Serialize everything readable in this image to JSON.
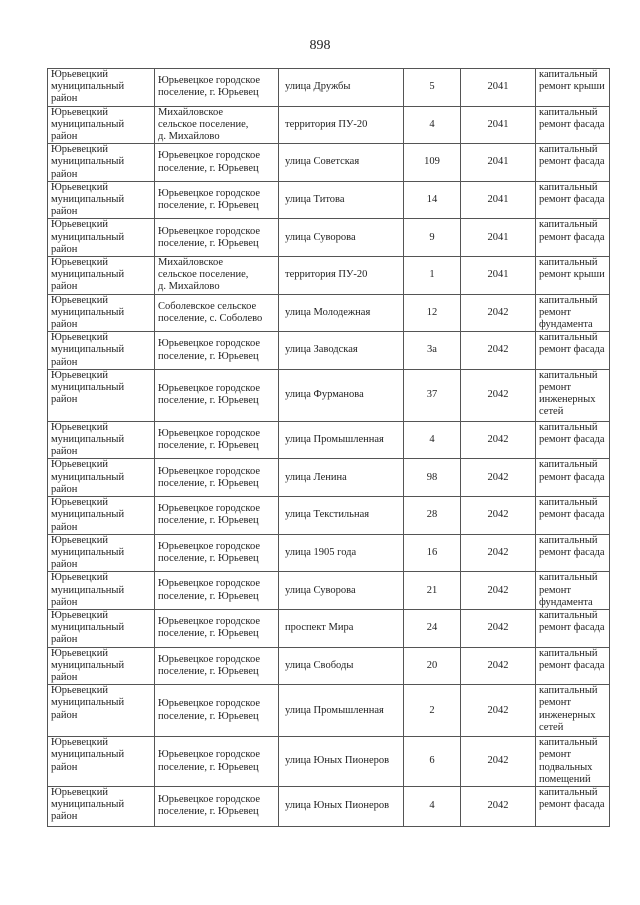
{
  "page_number": "898",
  "rows": [
    {
      "district": "Юрьевецкий\nмуниципальный\nрайон",
      "settlement": "Юрьевецкое городское\nпоселение, г. Юрьевец",
      "street": "улица Дружбы",
      "house": "5",
      "year": "2041",
      "work": "капитальный\nремонт крыши"
    },
    {
      "district": "Юрьевецкий\nмуниципальный\nрайон",
      "settlement": "Михайловское\nсельское поселение,\nд. Михайлово",
      "street": "территория ПУ-20",
      "house": "4",
      "year": "2041",
      "work": "капитальный\nремонт фасада"
    },
    {
      "district": "Юрьевецкий\nмуниципальный\nрайон",
      "settlement": "Юрьевецкое городское\nпоселение, г. Юрьевец",
      "street": "улица Советская",
      "house": "109",
      "year": "2041",
      "work": "капитальный\nремонт фасада"
    },
    {
      "district": "Юрьевецкий\nмуниципальный\nрайон",
      "settlement": "Юрьевецкое городское\nпоселение, г. Юрьевец",
      "street": "улица Титова",
      "house": "14",
      "year": "2041",
      "work": "капитальный\nремонт фасада"
    },
    {
      "district": "Юрьевецкий\nмуниципальный\nрайон",
      "settlement": "Юрьевецкое городское\nпоселение, г. Юрьевец",
      "street": "улица Суворова",
      "house": "9",
      "year": "2041",
      "work": "капитальный\nремонт фасада"
    },
    {
      "district": "Юрьевецкий\nмуниципальный\nрайон",
      "settlement": "Михайловское\nсельское поселение,\nд. Михайлово",
      "street": "территория ПУ-20",
      "house": "1",
      "year": "2041",
      "work": "капитальный\nремонт крыши"
    },
    {
      "district": "Юрьевецкий\nмуниципальный\nрайон",
      "settlement": "Соболевское сельское\nпоселение, с. Соболево",
      "street": "улица Молодежная",
      "house": "12",
      "year": "2042",
      "work": "капитальный\nремонт\nфундамента"
    },
    {
      "district": "Юрьевецкий\nмуниципальный\nрайон",
      "settlement": "Юрьевецкое городское\nпоселение, г. Юрьевец",
      "street": "улица Заводская",
      "house": "3а",
      "year": "2042",
      "work": "капитальный\nремонт фасада"
    },
    {
      "district": "Юрьевецкий\nмуниципальный\nрайон",
      "settlement": "Юрьевецкое городское\nпоселение, г. Юрьевец",
      "street": "улица Фурманова",
      "house": "37",
      "year": "2042",
      "work": "капитальный\nремонт\nинженерных\nсетей"
    },
    {
      "district": "Юрьевецкий\nмуниципальный\nрайон",
      "settlement": "Юрьевецкое городское\nпоселение, г. Юрьевец",
      "street": "улица Промышленная",
      "house": "4",
      "year": "2042",
      "work": "капитальный\nремонт фасада"
    },
    {
      "district": "Юрьевецкий\nмуниципальный\nрайон",
      "settlement": "Юрьевецкое городское\nпоселение, г. Юрьевец",
      "street": "улица Ленина",
      "house": "98",
      "year": "2042",
      "work": "капитальный\nремонт фасада"
    },
    {
      "district": "Юрьевецкий\nмуниципальный\nрайон",
      "settlement": "Юрьевецкое городское\nпоселение, г. Юрьевец",
      "street": "улица Текстильная",
      "house": "28",
      "year": "2042",
      "work": "капитальный\nремонт фасада"
    },
    {
      "district": "Юрьевецкий\nмуниципальный\nрайон",
      "settlement": "Юрьевецкое городское\nпоселение, г. Юрьевец",
      "street": "улица 1905 года",
      "house": "16",
      "year": "2042",
      "work": "капитальный\nремонт фасада"
    },
    {
      "district": "Юрьевецкий\nмуниципальный\nрайон",
      "settlement": "Юрьевецкое городское\nпоселение, г. Юрьевец",
      "street": "улица Суворова",
      "house": "21",
      "year": "2042",
      "work": "капитальный\nремонт\nфундамента"
    },
    {
      "district": "Юрьевецкий\nмуниципальный\nрайон",
      "settlement": "Юрьевецкое городское\nпоселение, г. Юрьевец",
      "street": "проспект Мира",
      "house": "24",
      "year": "2042",
      "work": "капитальный\nремонт фасада"
    },
    {
      "district": "Юрьевецкий\nмуниципальный\nрайон",
      "settlement": "Юрьевецкое городское\nпоселение, г. Юрьевец",
      "street": "улица Свободы",
      "house": "20",
      "year": "2042",
      "work": "капитальный\nремонт фасада"
    },
    {
      "district": "Юрьевецкий\nмуниципальный\nрайон",
      "settlement": "Юрьевецкое городское\nпоселение, г. Юрьевец",
      "street": "улица Промышленная",
      "house": "2",
      "year": "2042",
      "work": "капитальный\nремонт\nинженерных\nсетей"
    },
    {
      "district": "Юрьевецкий\nмуниципальный\nрайон",
      "settlement": "Юрьевецкое городское\nпоселение, г. Юрьевец",
      "street": "улица Юных Пионеров",
      "house": "6",
      "year": "2042",
      "work": "капитальный\nремонт\nподвальных\nпомещений"
    },
    {
      "district": "Юрьевецкий\nмуниципальный\nрайон",
      "settlement": "Юрьевецкое городское\nпоселение, г. Юрьевец",
      "street": "улица Юных Пионеров",
      "house": "4",
      "year": "2042",
      "work": "капитальный\nремонт фасада"
    }
  ]
}
